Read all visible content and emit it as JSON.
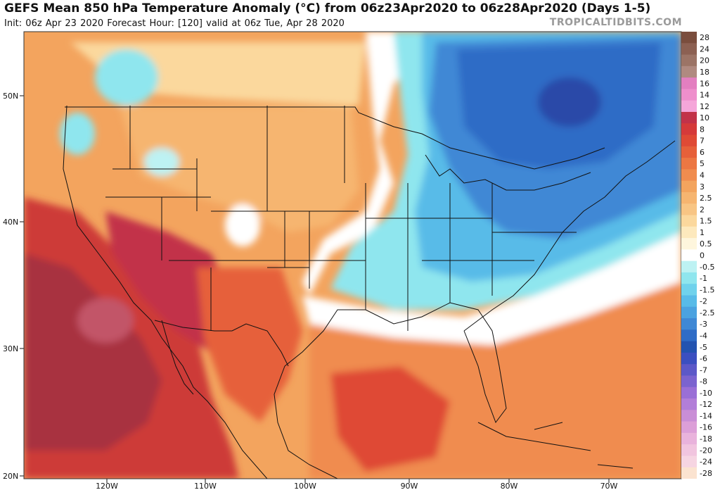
{
  "header": {
    "title": "GEFS Mean 850 hPa Temperature Anomaly (°C) from 06z23Apr2020 to 06z28Apr2020 (Days 1-5)",
    "subtitle": "Init: 06z Apr 23 2020   Forecast Hour: [120]   valid at 06z Tue, Apr 28 2020",
    "brand": "TROPICALTIDBITS.COM"
  },
  "axes": {
    "lat_labels": [
      "50N",
      "40N",
      "30N",
      "20N"
    ],
    "lon_labels": [
      "120W",
      "110W",
      "100W",
      "90W",
      "80W",
      "70W"
    ]
  },
  "legend": {
    "levels": [
      {
        "label": "28",
        "color": "#7a4d3d"
      },
      {
        "label": "24",
        "color": "#8c6052"
      },
      {
        "label": "20",
        "color": "#9c7466"
      },
      {
        "label": "18",
        "color": "#b08a80"
      },
      {
        "label": "16",
        "color": "#e37fc0"
      },
      {
        "label": "14",
        "color": "#ee8fcc"
      },
      {
        "label": "12",
        "color": "#f5a6d9"
      },
      {
        "label": "10",
        "color": "#c23249"
      },
      {
        "label": "8",
        "color": "#d53a3a"
      },
      {
        "label": "7",
        "color": "#df4a35"
      },
      {
        "label": "6",
        "color": "#e6603a"
      },
      {
        "label": "5",
        "color": "#ec7743"
      },
      {
        "label": "4",
        "color": "#f08c4f"
      },
      {
        "label": "3",
        "color": "#f3a45e"
      },
      {
        "label": "2.5",
        "color": "#f6b570"
      },
      {
        "label": "2",
        "color": "#f8c584"
      },
      {
        "label": "1.5",
        "color": "#fbd89d"
      },
      {
        "label": "1",
        "color": "#fde9bd"
      },
      {
        "label": "0.5",
        "color": "#fef6dd"
      },
      {
        "label": "0",
        "color": "#ffffff"
      },
      {
        "label": "-0.5",
        "color": "#bdf2f3"
      },
      {
        "label": "-1",
        "color": "#8fe6ee"
      },
      {
        "label": "-1.5",
        "color": "#70d2ec"
      },
      {
        "label": "-2",
        "color": "#58bbe8"
      },
      {
        "label": "-2.5",
        "color": "#4ba2e0"
      },
      {
        "label": "-3",
        "color": "#3f88d5"
      },
      {
        "label": "-4",
        "color": "#2f6cc6"
      },
      {
        "label": "-5",
        "color": "#2353b0"
      },
      {
        "label": "-6",
        "color": "#3b4fc0"
      },
      {
        "label": "-7",
        "color": "#5c58c8"
      },
      {
        "label": "-8",
        "color": "#7b63cf"
      },
      {
        "label": "-10",
        "color": "#9a6fd6"
      },
      {
        "label": "-12",
        "color": "#b27ed8"
      },
      {
        "label": "-14",
        "color": "#c98ed6"
      },
      {
        "label": "-16",
        "color": "#dc9fd8"
      },
      {
        "label": "-18",
        "color": "#e9b3dc"
      },
      {
        "label": "-20",
        "color": "#f1c5df"
      },
      {
        "label": "-24",
        "color": "#f6d5e2"
      },
      {
        "label": "-28",
        "color": "#fbe3d0"
      }
    ]
  },
  "colors": {
    "hot_core": "#a8323f",
    "very_hot": "#cd3b38",
    "hot": "#e6603a",
    "warm": "#f08c4f",
    "mild": "#f6b570",
    "slight": "#fbd89d",
    "neutral": "#ffffff",
    "cool": "#8fe6ee",
    "cold": "#58bbe8",
    "colder": "#3f88d5",
    "coldest": "#2353b0",
    "core_cold": "#2a4aa8"
  }
}
